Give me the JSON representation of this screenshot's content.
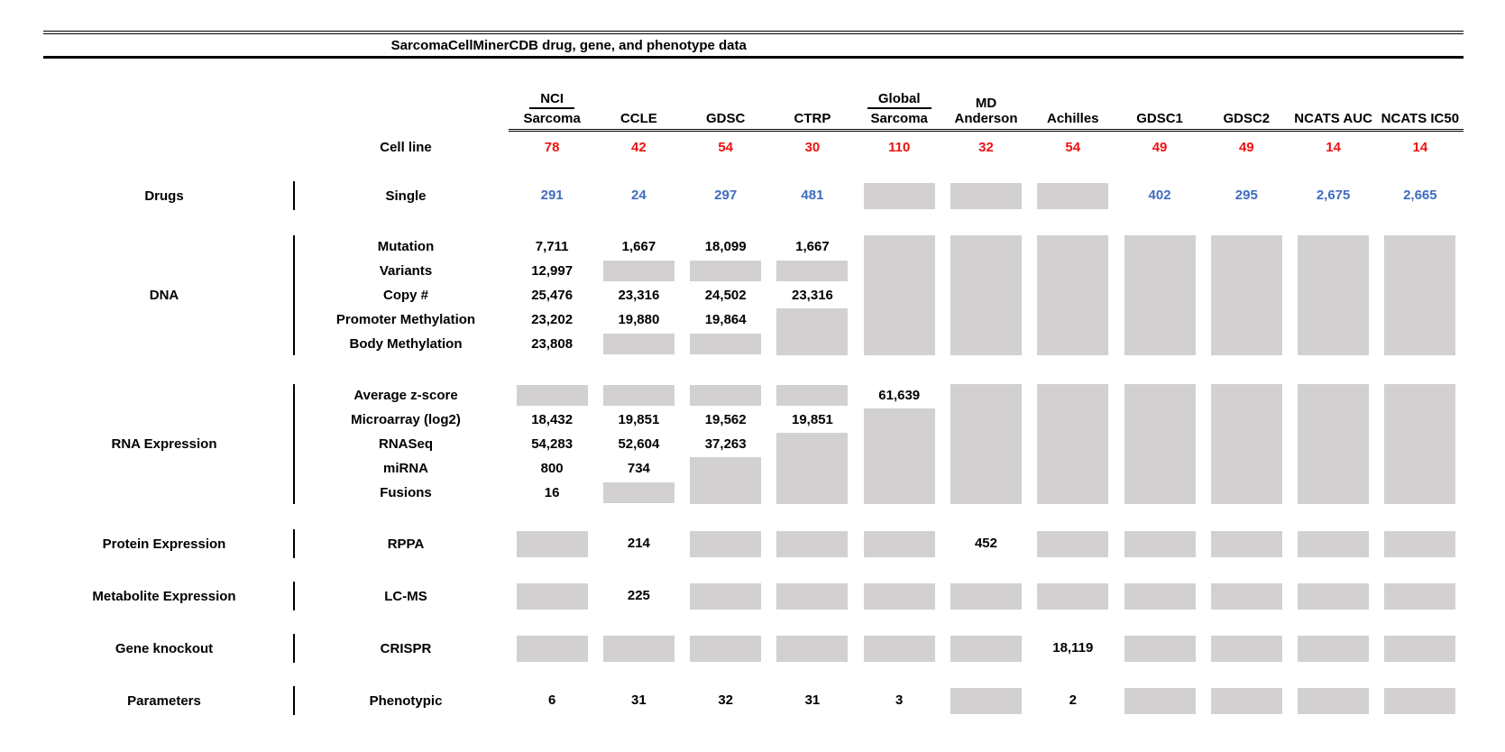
{
  "title": "SarcomaCellMinerCDB drug, gene, and phenotype data",
  "colors": {
    "count_red": "#ee1111",
    "drug_blue": "#3f6cbf",
    "missing_gray": "#d2d0d0"
  },
  "columns": [
    {
      "label_top": "NCI",
      "label_bottom": "Sarcoma"
    },
    {
      "label_bottom": "CCLE"
    },
    {
      "label_bottom": "GDSC"
    },
    {
      "label_bottom": "CTRP"
    },
    {
      "label_top": "Global",
      "label_bottom": "Sarcoma"
    },
    {
      "label_bottom": "MD Anderson"
    },
    {
      "label_bottom": "Achilles"
    },
    {
      "label_bottom": "GDSC1"
    },
    {
      "label_bottom": "GDSC2"
    },
    {
      "label_bottom": "NCATS AUC"
    },
    {
      "label_bottom": "NCATS IC50"
    }
  ],
  "cell_line_row": {
    "label": "Cell line",
    "values": [
      "78",
      "42",
      "54",
      "30",
      "110",
      "32",
      "54",
      "49",
      "49",
      "14",
      "14"
    ]
  },
  "sections": [
    {
      "category": "Drugs",
      "kind": "single",
      "rows": [
        {
          "label": "Single",
          "style": "blue",
          "cells": [
            "291",
            "24",
            "297",
            "481",
            "#",
            "#",
            "#",
            "402",
            "295",
            "2,675",
            "2,665"
          ]
        }
      ]
    },
    {
      "category": "DNA",
      "kind": "multi",
      "rows": [
        {
          "label": "Mutation",
          "cells": [
            "7,711",
            "1,667",
            "18,099",
            "1,667",
            "",
            "",
            "",
            "",
            "",
            "",
            ""
          ]
        },
        {
          "label": "Variants",
          "cells": [
            "12,997",
            "#",
            "#",
            "#",
            "",
            "",
            "",
            "",
            "",
            "",
            ""
          ]
        },
        {
          "label": "Copy #",
          "cells": [
            "25,476",
            "23,316",
            "24,502",
            "23,316",
            "",
            "",
            "",
            "",
            "",
            "",
            ""
          ]
        },
        {
          "label": "Promoter Methylation",
          "cells": [
            "23,202",
            "19,880",
            "19,864",
            "",
            "",
            "",
            "",
            "",
            "",
            "",
            ""
          ]
        },
        {
          "label": "Body Methylation",
          "cells": [
            "23,808",
            "#",
            "#",
            "",
            "",
            "",
            "",
            "",
            "",
            "",
            ""
          ]
        }
      ],
      "spans": [
        {
          "col": 3,
          "from": 4,
          "to": 5
        },
        {
          "col": 4,
          "from": 1,
          "to": 5
        },
        {
          "col": 5,
          "from": 1,
          "to": 5
        },
        {
          "col": 6,
          "from": 1,
          "to": 5
        },
        {
          "col": 7,
          "from": 1,
          "to": 5
        },
        {
          "col": 8,
          "from": 1,
          "to": 5
        },
        {
          "col": 9,
          "from": 1,
          "to": 5
        },
        {
          "col": 10,
          "from": 1,
          "to": 5
        }
      ]
    },
    {
      "category": "RNA Expression",
      "kind": "multi",
      "rows": [
        {
          "label": "Average z-score",
          "cells": [
            "#",
            "#",
            "#",
            "#",
            "61,639",
            "",
            "",
            "",
            "",
            "",
            ""
          ]
        },
        {
          "label": "Microarray (log2)",
          "cells": [
            "18,432",
            "19,851",
            "19,562",
            "19,851",
            "",
            "",
            "",
            "",
            "",
            "",
            ""
          ]
        },
        {
          "label": "RNASeq",
          "cells": [
            "54,283",
            "52,604",
            "37,263",
            "",
            "",
            "",
            "",
            "",
            "",
            "",
            ""
          ]
        },
        {
          "label": "miRNA",
          "cells": [
            "800",
            "734",
            "",
            "",
            "",
            "",
            "",
            "",
            "",
            "",
            ""
          ]
        },
        {
          "label": "Fusions",
          "cells": [
            "16",
            "#",
            "",
            "",
            "",
            "",
            "",
            "",
            "",
            "",
            ""
          ]
        }
      ],
      "spans": [
        {
          "col": 2,
          "from": 4,
          "to": 5
        },
        {
          "col": 3,
          "from": 3,
          "to": 5
        },
        {
          "col": 4,
          "from": 2,
          "to": 5
        },
        {
          "col": 5,
          "from": 1,
          "to": 5
        },
        {
          "col": 6,
          "from": 1,
          "to": 5
        },
        {
          "col": 7,
          "from": 1,
          "to": 5
        },
        {
          "col": 8,
          "from": 1,
          "to": 5
        },
        {
          "col": 9,
          "from": 1,
          "to": 5
        },
        {
          "col": 10,
          "from": 1,
          "to": 5
        }
      ]
    },
    {
      "category": "Protein Expression",
      "kind": "single",
      "rows": [
        {
          "label": "RPPA",
          "cells": [
            "#",
            "214",
            "#",
            "#",
            "#",
            "452",
            "#",
            "#",
            "#",
            "#",
            "#"
          ]
        }
      ]
    },
    {
      "category": "Metabolite Expression",
      "kind": "single",
      "rows": [
        {
          "label": "LC-MS",
          "cells": [
            "#",
            "225",
            "#",
            "#",
            "#",
            "#",
            "#",
            "#",
            "#",
            "#",
            "#"
          ]
        }
      ]
    },
    {
      "category": "Gene knockout",
      "kind": "single",
      "rows": [
        {
          "label": "CRISPR",
          "cells": [
            "#",
            "#",
            "#",
            "#",
            "#",
            "#",
            "18,119",
            "#",
            "#",
            "#",
            "#"
          ]
        }
      ]
    },
    {
      "category": "Parameters",
      "kind": "single",
      "rows": [
        {
          "label": "Phenotypic",
          "cells": [
            "6",
            "31",
            "32",
            "31",
            "3",
            "#",
            "2",
            "#",
            "#",
            "#",
            "#"
          ]
        }
      ]
    }
  ]
}
